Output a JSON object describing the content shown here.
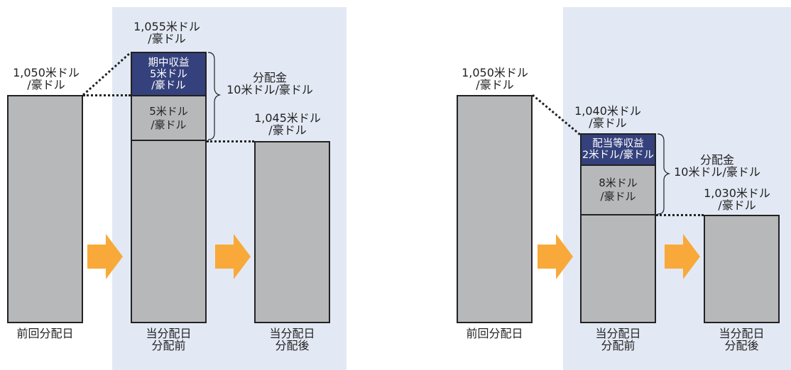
{
  "left": {
    "prev_value": "1,050米ドル\n/豪ドル",
    "peak_value": "1,055米ドル\n/豪ドル",
    "after_value": "1,045米ドル\n/豪ドル",
    "income_segment": "期中収益\n5米ドル\n/豪ドル",
    "capital_segment": "5米ドル\n/豪ドル",
    "distribution": "分配金\n10米ドル/豪ドル",
    "cap_prev": "前回分配日",
    "cap_before": "当分配日\n分配前",
    "cap_after": "当分配日\n分配後"
  },
  "right": {
    "prev_value": "1,050米ドル\n/豪ドル",
    "peak_value": "1,040米ドル\n/豪ドル",
    "after_value": "1,030米ドル\n/豪ドル",
    "income_segment": "配当等収益\n2米ドル/豪ドル",
    "capital_segment": "8米ドル\n/豪ドル",
    "distribution": "分配金\n10米ドル/豪ドル",
    "cap_prev": "前回分配日",
    "cap_before": "当分配日\n分配前",
    "cap_after": "当分配日\n分配後"
  },
  "colors": {
    "panel_bg": "#e3e9f4",
    "bar_fill": "#b7b8ba",
    "income_fill": "#34417c",
    "arrow": "#f8a93a"
  },
  "icons": [
    "right-arrow-icon"
  ]
}
